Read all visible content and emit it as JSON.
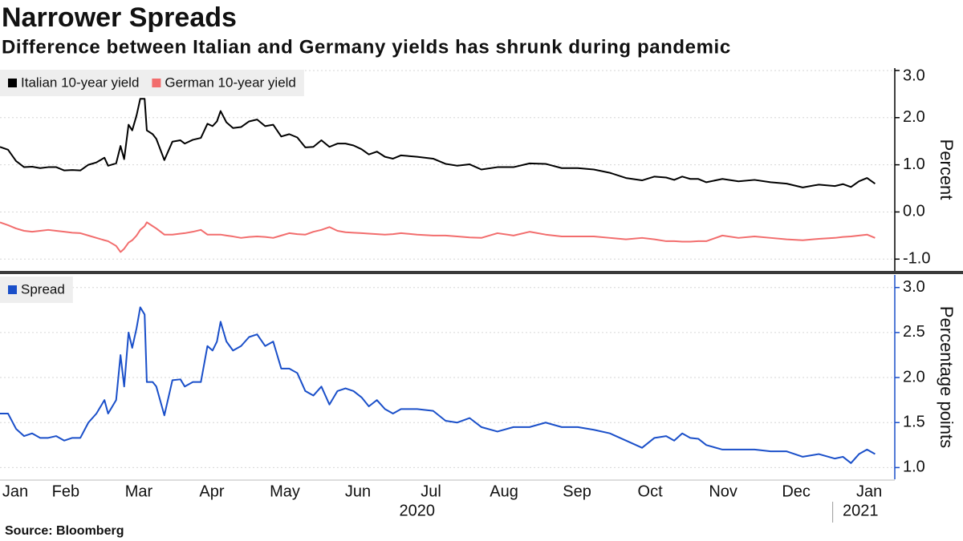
{
  "chart_data": [
    {
      "type": "line",
      "title": "Narrower Spreads",
      "subtitle": "Difference between Italian and Germany yields has shrunk during pandemic",
      "x": [
        0.6,
        0.71,
        0.82,
        0.93,
        1.04,
        1.15,
        1.26,
        1.37,
        1.48,
        1.59,
        1.7,
        1.81,
        1.92,
        2.03,
        2.08,
        2.19,
        2.25,
        2.3,
        2.36,
        2.41,
        2.47,
        2.52,
        2.58,
        2.61,
        2.69,
        2.74,
        2.85,
        2.96,
        3.07,
        3.13,
        3.24,
        3.35,
        3.44,
        3.51,
        3.57,
        3.62,
        3.7,
        3.79,
        3.9,
        4.01,
        4.12,
        4.23,
        4.34,
        4.45,
        4.56,
        4.67,
        4.78,
        4.89,
        5.0,
        5.11,
        5.22,
        5.33,
        5.44,
        5.55,
        5.65,
        5.76,
        5.87,
        5.98,
        6.09,
        6.31,
        6.53,
        6.7,
        6.86,
        7.03,
        7.19,
        7.41,
        7.63,
        7.85,
        8.07,
        8.29,
        8.51,
        8.73,
        8.95,
        9.17,
        9.39,
        9.56,
        9.72,
        9.83,
        9.94,
        10.05,
        10.16,
        10.27,
        10.49,
        10.71,
        10.93,
        11.15,
        11.37,
        11.59,
        11.81,
        12.03,
        12.14,
        12.25,
        12.36,
        12.47,
        12.58
      ],
      "series": [
        {
          "name": "Italian 10-year yield",
          "color": "#000000",
          "values": [
            1.38,
            1.32,
            1.08,
            0.95,
            0.96,
            0.93,
            0.95,
            0.95,
            0.88,
            0.89,
            0.88,
            1.0,
            1.05,
            1.15,
            0.98,
            1.03,
            1.4,
            1.12,
            1.85,
            1.73,
            2.05,
            2.4,
            2.4,
            1.73,
            1.65,
            1.55,
            1.1,
            1.49,
            1.52,
            1.45,
            1.53,
            1.57,
            1.87,
            1.82,
            1.92,
            2.14,
            1.9,
            1.78,
            1.8,
            1.92,
            1.96,
            1.82,
            1.85,
            1.6,
            1.65,
            1.58,
            1.37,
            1.38,
            1.52,
            1.38,
            1.45,
            1.45,
            1.41,
            1.33,
            1.22,
            1.28,
            1.17,
            1.13,
            1.2,
            1.17,
            1.13,
            1.02,
            0.98,
            1.01,
            0.9,
            0.95,
            0.95,
            1.03,
            1.02,
            0.93,
            0.93,
            0.9,
            0.83,
            0.72,
            0.67,
            0.75,
            0.73,
            0.68,
            0.75,
            0.7,
            0.7,
            0.63,
            0.7,
            0.65,
            0.68,
            0.63,
            0.6,
            0.52,
            0.58,
            0.55,
            0.59,
            0.53,
            0.65,
            0.72,
            0.6
          ]
        },
        {
          "name": "German 10-year yield",
          "color": "#f26d6d",
          "values": [
            -0.22,
            -0.28,
            -0.35,
            -0.4,
            -0.42,
            -0.4,
            -0.38,
            -0.4,
            -0.42,
            -0.44,
            -0.45,
            -0.5,
            -0.55,
            -0.6,
            -0.62,
            -0.72,
            -0.85,
            -0.78,
            -0.65,
            -0.6,
            -0.5,
            -0.38,
            -0.3,
            -0.22,
            -0.3,
            -0.35,
            -0.48,
            -0.48,
            -0.46,
            -0.45,
            -0.42,
            -0.38,
            -0.48,
            -0.48,
            -0.48,
            -0.48,
            -0.5,
            -0.52,
            -0.55,
            -0.53,
            -0.52,
            -0.53,
            -0.55,
            -0.5,
            -0.45,
            -0.47,
            -0.48,
            -0.42,
            -0.38,
            -0.32,
            -0.4,
            -0.43,
            -0.44,
            -0.45,
            -0.46,
            -0.47,
            -0.48,
            -0.47,
            -0.45,
            -0.48,
            -0.5,
            -0.5,
            -0.52,
            -0.54,
            -0.55,
            -0.45,
            -0.5,
            -0.42,
            -0.48,
            -0.52,
            -0.52,
            -0.52,
            -0.55,
            -0.58,
            -0.55,
            -0.58,
            -0.62,
            -0.62,
            -0.63,
            -0.63,
            -0.62,
            -0.62,
            -0.5,
            -0.55,
            -0.52,
            -0.55,
            -0.58,
            -0.6,
            -0.57,
            -0.55,
            -0.53,
            -0.52,
            -0.5,
            -0.48,
            -0.55
          ]
        }
      ],
      "xlim": [
        0.6,
        12.85
      ],
      "ylim": [
        -1.25,
        3.05
      ],
      "yticks": [
        {
          "value": -1,
          "label": "-1.0"
        },
        {
          "value": 0,
          "label": "0.0"
        },
        {
          "value": 1,
          "label": "1.0"
        },
        {
          "value": 2,
          "label": "2.0"
        },
        {
          "value": 3,
          "label": "3.0"
        }
      ],
      "y_label": "Percent",
      "grid": true,
      "legend": "top-left"
    },
    {
      "type": "line",
      "x": [
        0.6,
        0.71,
        0.82,
        0.93,
        1.04,
        1.15,
        1.26,
        1.37,
        1.48,
        1.59,
        1.7,
        1.81,
        1.92,
        2.03,
        2.08,
        2.19,
        2.25,
        2.3,
        2.36,
        2.41,
        2.47,
        2.52,
        2.58,
        2.61,
        2.69,
        2.74,
        2.85,
        2.96,
        3.07,
        3.13,
        3.24,
        3.35,
        3.44,
        3.51,
        3.57,
        3.62,
        3.7,
        3.79,
        3.9,
        4.01,
        4.12,
        4.23,
        4.34,
        4.45,
        4.56,
        4.67,
        4.78,
        4.89,
        5.0,
        5.11,
        5.22,
        5.33,
        5.44,
        5.55,
        5.65,
        5.76,
        5.87,
        5.98,
        6.09,
        6.31,
        6.53,
        6.7,
        6.86,
        7.03,
        7.19,
        7.41,
        7.63,
        7.85,
        8.07,
        8.29,
        8.51,
        8.73,
        8.95,
        9.17,
        9.39,
        9.56,
        9.72,
        9.83,
        9.94,
        10.05,
        10.16,
        10.27,
        10.49,
        10.71,
        10.93,
        11.15,
        11.37,
        11.59,
        11.81,
        12.03,
        12.14,
        12.25,
        12.36,
        12.47,
        12.58
      ],
      "series": [
        {
          "name": "Spread",
          "color": "#1a4fc9",
          "values": [
            1.6,
            1.6,
            1.43,
            1.35,
            1.38,
            1.33,
            1.33,
            1.35,
            1.3,
            1.33,
            1.33,
            1.5,
            1.6,
            1.75,
            1.6,
            1.75,
            2.25,
            1.9,
            2.5,
            2.33,
            2.55,
            2.78,
            2.7,
            1.95,
            1.95,
            1.9,
            1.58,
            1.97,
            1.98,
            1.9,
            1.95,
            1.95,
            2.35,
            2.3,
            2.4,
            2.62,
            2.4,
            2.3,
            2.35,
            2.45,
            2.48,
            2.35,
            2.4,
            2.1,
            2.1,
            2.05,
            1.85,
            1.8,
            1.9,
            1.7,
            1.85,
            1.88,
            1.85,
            1.78,
            1.68,
            1.75,
            1.65,
            1.6,
            1.65,
            1.65,
            1.63,
            1.52,
            1.5,
            1.55,
            1.45,
            1.4,
            1.45,
            1.45,
            1.5,
            1.45,
            1.45,
            1.42,
            1.38,
            1.3,
            1.22,
            1.33,
            1.35,
            1.3,
            1.38,
            1.33,
            1.32,
            1.25,
            1.2,
            1.2,
            1.2,
            1.18,
            1.18,
            1.12,
            1.15,
            1.1,
            1.12,
            1.05,
            1.15,
            1.2,
            1.15
          ]
        }
      ],
      "xlim": [
        0.6,
        12.85
      ],
      "xticks": [
        {
          "value": 0.5,
          "label": "Jan"
        },
        {
          "value": 1.5,
          "label": "Feb"
        },
        {
          "value": 2.5,
          "label": "Mar"
        },
        {
          "value": 3.5,
          "label": "Apr"
        },
        {
          "value": 4.5,
          "label": "May"
        },
        {
          "value": 5.5,
          "label": "Jun"
        },
        {
          "value": 6.5,
          "label": "Jul"
        },
        {
          "value": 7.5,
          "label": "Aug"
        },
        {
          "value": 8.5,
          "label": "Sep"
        },
        {
          "value": 9.5,
          "label": "Oct"
        },
        {
          "value": 10.5,
          "label": "Nov"
        },
        {
          "value": 11.5,
          "label": "Dec"
        },
        {
          "value": 12.5,
          "label": "Jan"
        }
      ],
      "year_labels": [
        {
          "value": 6.31,
          "label": "2020"
        },
        {
          "value": 12.38,
          "label": "2021"
        }
      ],
      "ylim": [
        0.87,
        3.14
      ],
      "yticks": [
        {
          "value": 1,
          "label": "1.0"
        },
        1.5,
        {
          "value": 2,
          "label": "2.0"
        },
        2.5,
        {
          "value": 3,
          "label": "3.0"
        }
      ],
      "y_label": "Percentage points",
      "source": "Source:  Bloomberg",
      "grid": true,
      "legend": "top-left"
    }
  ]
}
